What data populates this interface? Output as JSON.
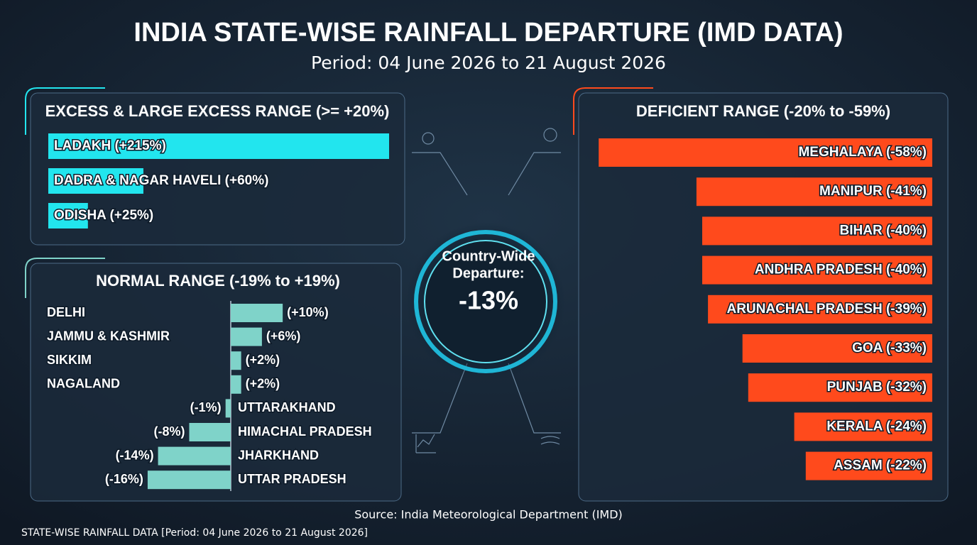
{
  "header": {
    "title": "INDIA STATE-WISE RAINFALL DEPARTURE (IMD DATA)",
    "subtitle": "Period: 04 June 2026 to 21 August 2026"
  },
  "center": {
    "label_lines": [
      "Country-Wide",
      "Departure:"
    ],
    "value": "-13%"
  },
  "chart_data": [
    {
      "type": "bar",
      "title": "EXCESS & LARGE EXCESS RANGE (>= +20%)",
      "color": "#22e5ee",
      "categories": [
        "LADAKH",
        "DADRA & NAGAR HAVELI",
        "ODISHA"
      ],
      "values": [
        215,
        60,
        25
      ],
      "value_labels": [
        "(+215%)",
        "(+60%)",
        "(+25%)"
      ],
      "xlim": [
        0,
        215
      ]
    },
    {
      "type": "bar",
      "title": "NORMAL RANGE (-19% to +19%)",
      "color": "#7fd3c9",
      "categories": [
        "DELHI",
        "JAMMU & KASHMIR",
        "SIKKIM",
        "NAGALAND",
        "UTTARAKHAND",
        "HIMACHAL PRADESH",
        "JHARKHAND",
        "UTTAR PRADESH"
      ],
      "values": [
        10,
        6,
        2,
        2,
        -1,
        -8,
        -14,
        -16
      ],
      "value_labels": [
        "(+10%)",
        "(+6%)",
        "(+2%)",
        "(+2%)",
        "(-1%)",
        "(-8%)",
        "(-14%)",
        "(-16%)"
      ],
      "xlim": [
        -19,
        19
      ]
    },
    {
      "type": "bar",
      "title": "DEFICIENT RANGE (-20% to -59%)",
      "color": "#ff4a1c",
      "categories": [
        "MEGHALAYA",
        "MANIPUR",
        "BIHAR",
        "ANDHRA PRADESH",
        "ARUNACHAL PRADESH",
        "GOA",
        "PUNJAB",
        "KERALA",
        "ASSAM"
      ],
      "values": [
        -58,
        -41,
        -40,
        -40,
        -39,
        -33,
        -32,
        -24,
        -22
      ],
      "value_labels": [
        "(-58%)",
        "(-41%)",
        "(-40%)",
        "(-40%)",
        "(-39%)",
        "(-33%)",
        "(-32%)",
        "(-24%)",
        "(-22%)"
      ],
      "xlim": [
        -60,
        0
      ]
    }
  ],
  "footer": {
    "source": "Source: India Meteorological Department (IMD)",
    "note": "STATE-WISE RAINFALL DATA [Period: 04 June 2026 to 21 August 2026]"
  }
}
